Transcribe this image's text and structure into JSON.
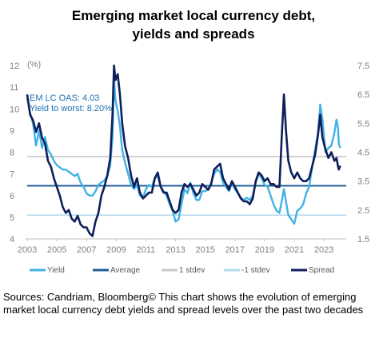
{
  "title_line1": "Emerging market local currency debt,",
  "title_line2": "yields and spreads",
  "source": "Sources: Candriam, Bloomberg© This chart shows the evolution of emerging market local currency debt yields and spread levels over the past two decades",
  "chart_data": {
    "type": "line",
    "title": "Emerging market local currency debt, yields and spreads",
    "y_unit_label": "(%)",
    "annotations": [
      "EM LC OAS: 4.03",
      "Yield to worst: 8.20%"
    ],
    "xlim": [
      2003,
      2024.5
    ],
    "x_ticks": [
      "2003",
      "2005",
      "2007",
      "2009",
      "2011",
      "2013",
      "2015",
      "2017",
      "2019",
      "2021",
      "2023"
    ],
    "y_left": {
      "lim": [
        4,
        12
      ],
      "ticks": [
        "4",
        "5",
        "6",
        "7",
        "8",
        "9",
        "10",
        "11",
        "12"
      ]
    },
    "y_right": {
      "lim": [
        1.5,
        7.5
      ],
      "ticks": [
        "1.5",
        "2.5",
        "3.5",
        "4.5",
        "5.5",
        "6.5",
        "7.5"
      ]
    },
    "reference_lines": [
      {
        "name": "Average",
        "axis": "left",
        "value": 6.45,
        "color": "#1f5f99"
      },
      {
        "name": "1 stdev",
        "axis": "left",
        "value": 7.8,
        "color": "#c9c9c9"
      },
      {
        "name": "-1 stdev",
        "axis": "left",
        "value": 5.1,
        "color": "#b7d9ee"
      }
    ],
    "series": [
      {
        "name": "Yield",
        "axis": "left",
        "color": "#41b2e6",
        "points": [
          [
            2003.0,
            10.5
          ],
          [
            2003.2,
            9.8
          ],
          [
            2003.4,
            9.3
          ],
          [
            2003.6,
            8.3
          ],
          [
            2003.8,
            9.0
          ],
          [
            2004.0,
            8.2
          ],
          [
            2004.2,
            8.7
          ],
          [
            2004.4,
            8.1
          ],
          [
            2004.6,
            7.9
          ],
          [
            2004.8,
            7.6
          ],
          [
            2005.0,
            7.4
          ],
          [
            2005.2,
            7.3
          ],
          [
            2005.4,
            7.2
          ],
          [
            2005.6,
            7.2
          ],
          [
            2005.8,
            7.1
          ],
          [
            2006.0,
            7.0
          ],
          [
            2006.2,
            6.9
          ],
          [
            2006.4,
            7.0
          ],
          [
            2006.6,
            6.6
          ],
          [
            2006.8,
            6.4
          ],
          [
            2007.0,
            6.1
          ],
          [
            2007.2,
            6.0
          ],
          [
            2007.4,
            6.0
          ],
          [
            2007.6,
            6.2
          ],
          [
            2007.8,
            6.5
          ],
          [
            2008.0,
            6.6
          ],
          [
            2008.2,
            6.7
          ],
          [
            2008.4,
            6.9
          ],
          [
            2008.6,
            7.4
          ],
          [
            2008.75,
            8.7
          ],
          [
            2008.85,
            11.4
          ],
          [
            2008.95,
            10.4
          ],
          [
            2009.1,
            9.9
          ],
          [
            2009.25,
            9.2
          ],
          [
            2009.4,
            8.1
          ],
          [
            2009.6,
            7.5
          ],
          [
            2009.8,
            7.0
          ],
          [
            2010.0,
            6.5
          ],
          [
            2010.2,
            6.3
          ],
          [
            2010.4,
            6.5
          ],
          [
            2010.6,
            6.0
          ],
          [
            2010.8,
            5.9
          ],
          [
            2011.0,
            6.3
          ],
          [
            2011.2,
            6.5
          ],
          [
            2011.4,
            6.4
          ],
          [
            2011.6,
            6.8
          ],
          [
            2011.8,
            6.9
          ],
          [
            2012.0,
            6.4
          ],
          [
            2012.2,
            6.2
          ],
          [
            2012.4,
            6.0
          ],
          [
            2012.6,
            5.6
          ],
          [
            2012.8,
            5.3
          ],
          [
            2013.0,
            4.8
          ],
          [
            2013.2,
            4.9
          ],
          [
            2013.4,
            5.6
          ],
          [
            2013.6,
            6.3
          ],
          [
            2013.8,
            6.1
          ],
          [
            2014.0,
            6.6
          ],
          [
            2014.2,
            6.1
          ],
          [
            2014.4,
            5.8
          ],
          [
            2014.6,
            5.8
          ],
          [
            2014.8,
            6.2
          ],
          [
            2015.0,
            6.2
          ],
          [
            2015.2,
            6.3
          ],
          [
            2015.4,
            6.6
          ],
          [
            2015.6,
            7.0
          ],
          [
            2015.8,
            7.2
          ],
          [
            2016.0,
            7.1
          ],
          [
            2016.2,
            6.6
          ],
          [
            2016.4,
            6.4
          ],
          [
            2016.6,
            6.2
          ],
          [
            2016.8,
            6.6
          ],
          [
            2017.0,
            6.3
          ],
          [
            2017.2,
            6.1
          ],
          [
            2017.4,
            5.9
          ],
          [
            2017.6,
            5.8
          ],
          [
            2017.8,
            5.9
          ],
          [
            2018.0,
            5.8
          ],
          [
            2018.2,
            6.0
          ],
          [
            2018.4,
            6.6
          ],
          [
            2018.6,
            7.0
          ],
          [
            2018.8,
            6.8
          ],
          [
            2019.0,
            6.5
          ],
          [
            2019.2,
            6.4
          ],
          [
            2019.4,
            6.0
          ],
          [
            2019.6,
            5.6
          ],
          [
            2019.8,
            5.3
          ],
          [
            2020.0,
            5.2
          ],
          [
            2020.2,
            5.9
          ],
          [
            2020.3,
            6.3
          ],
          [
            2020.45,
            5.7
          ],
          [
            2020.6,
            5.1
          ],
          [
            2020.8,
            4.9
          ],
          [
            2021.0,
            4.7
          ],
          [
            2021.2,
            5.3
          ],
          [
            2021.4,
            5.4
          ],
          [
            2021.6,
            5.6
          ],
          [
            2021.8,
            6.1
          ],
          [
            2022.0,
            6.4
          ],
          [
            2022.2,
            7.3
          ],
          [
            2022.4,
            8.1
          ],
          [
            2022.6,
            8.9
          ],
          [
            2022.75,
            10.2
          ],
          [
            2022.9,
            9.5
          ],
          [
            2023.1,
            8.0
          ],
          [
            2023.3,
            8.2
          ],
          [
            2023.5,
            8.3
          ],
          [
            2023.7,
            8.9
          ],
          [
            2023.85,
            9.5
          ],
          [
            2023.95,
            9.1
          ],
          [
            2024.0,
            8.4
          ],
          [
            2024.1,
            8.2
          ]
        ]
      },
      {
        "name": "Spread",
        "axis": "right",
        "color": "#0e1f5b",
        "points": [
          [
            2003.0,
            6.5
          ],
          [
            2003.2,
            5.8
          ],
          [
            2003.4,
            5.6
          ],
          [
            2003.6,
            5.2
          ],
          [
            2003.8,
            5.5
          ],
          [
            2004.0,
            5.0
          ],
          [
            2004.2,
            4.8
          ],
          [
            2004.4,
            4.2
          ],
          [
            2004.6,
            4.0
          ],
          [
            2004.8,
            3.6
          ],
          [
            2005.0,
            3.3
          ],
          [
            2005.2,
            3.0
          ],
          [
            2005.4,
            2.6
          ],
          [
            2005.6,
            2.4
          ],
          [
            2005.8,
            2.5
          ],
          [
            2006.0,
            2.2
          ],
          [
            2006.2,
            2.1
          ],
          [
            2006.4,
            2.3
          ],
          [
            2006.6,
            2.0
          ],
          [
            2006.8,
            1.9
          ],
          [
            2007.0,
            1.9
          ],
          [
            2007.2,
            1.7
          ],
          [
            2007.4,
            1.6
          ],
          [
            2007.6,
            2.1
          ],
          [
            2007.8,
            2.4
          ],
          [
            2008.0,
            3.0
          ],
          [
            2008.2,
            3.3
          ],
          [
            2008.4,
            3.7
          ],
          [
            2008.6,
            4.3
          ],
          [
            2008.75,
            5.8
          ],
          [
            2008.85,
            7.5
          ],
          [
            2008.95,
            7.0
          ],
          [
            2009.1,
            7.2
          ],
          [
            2009.25,
            6.5
          ],
          [
            2009.4,
            5.5
          ],
          [
            2009.6,
            4.7
          ],
          [
            2009.8,
            4.3
          ],
          [
            2010.0,
            3.7
          ],
          [
            2010.2,
            3.3
          ],
          [
            2010.4,
            3.6
          ],
          [
            2010.6,
            3.1
          ],
          [
            2010.8,
            2.9
          ],
          [
            2011.0,
            3.0
          ],
          [
            2011.2,
            3.1
          ],
          [
            2011.4,
            3.1
          ],
          [
            2011.6,
            3.6
          ],
          [
            2011.8,
            3.8
          ],
          [
            2012.0,
            3.3
          ],
          [
            2012.2,
            3.1
          ],
          [
            2012.4,
            3.1
          ],
          [
            2012.6,
            2.8
          ],
          [
            2012.8,
            2.5
          ],
          [
            2013.0,
            2.4
          ],
          [
            2013.2,
            2.5
          ],
          [
            2013.4,
            3.1
          ],
          [
            2013.6,
            3.4
          ],
          [
            2013.8,
            3.3
          ],
          [
            2014.0,
            3.4
          ],
          [
            2014.2,
            3.2
          ],
          [
            2014.4,
            3.0
          ],
          [
            2014.6,
            3.1
          ],
          [
            2014.8,
            3.4
          ],
          [
            2015.0,
            3.3
          ],
          [
            2015.2,
            3.2
          ],
          [
            2015.4,
            3.4
          ],
          [
            2015.6,
            3.9
          ],
          [
            2015.8,
            4.0
          ],
          [
            2016.0,
            4.1
          ],
          [
            2016.2,
            3.6
          ],
          [
            2016.4,
            3.4
          ],
          [
            2016.6,
            3.2
          ],
          [
            2016.8,
            3.5
          ],
          [
            2017.0,
            3.3
          ],
          [
            2017.2,
            3.1
          ],
          [
            2017.4,
            2.9
          ],
          [
            2017.6,
            2.8
          ],
          [
            2017.8,
            2.8
          ],
          [
            2018.0,
            2.7
          ],
          [
            2018.2,
            2.9
          ],
          [
            2018.4,
            3.5
          ],
          [
            2018.6,
            3.8
          ],
          [
            2018.8,
            3.7
          ],
          [
            2019.0,
            3.5
          ],
          [
            2019.2,
            3.6
          ],
          [
            2019.4,
            3.4
          ],
          [
            2019.6,
            3.4
          ],
          [
            2019.8,
            3.3
          ],
          [
            2020.0,
            3.3
          ],
          [
            2020.15,
            5.0
          ],
          [
            2020.3,
            6.5
          ],
          [
            2020.45,
            5.2
          ],
          [
            2020.6,
            4.2
          ],
          [
            2020.8,
            3.8
          ],
          [
            2021.0,
            3.6
          ],
          [
            2021.2,
            3.8
          ],
          [
            2021.4,
            3.6
          ],
          [
            2021.6,
            3.5
          ],
          [
            2021.8,
            3.5
          ],
          [
            2022.0,
            3.6
          ],
          [
            2022.2,
            4.0
          ],
          [
            2022.4,
            4.4
          ],
          [
            2022.6,
            5.1
          ],
          [
            2022.75,
            5.8
          ],
          [
            2022.9,
            5.0
          ],
          [
            2023.1,
            4.6
          ],
          [
            2023.3,
            4.3
          ],
          [
            2023.5,
            4.5
          ],
          [
            2023.7,
            4.2
          ],
          [
            2023.85,
            4.3
          ],
          [
            2023.95,
            4.0
          ],
          [
            2024.0,
            3.9
          ],
          [
            2024.1,
            4.03
          ]
        ]
      }
    ],
    "legend": [
      "Yield",
      "Average",
      "1 stdev",
      "-1 stdev",
      "Spread"
    ],
    "legend_placement": "bottom"
  }
}
